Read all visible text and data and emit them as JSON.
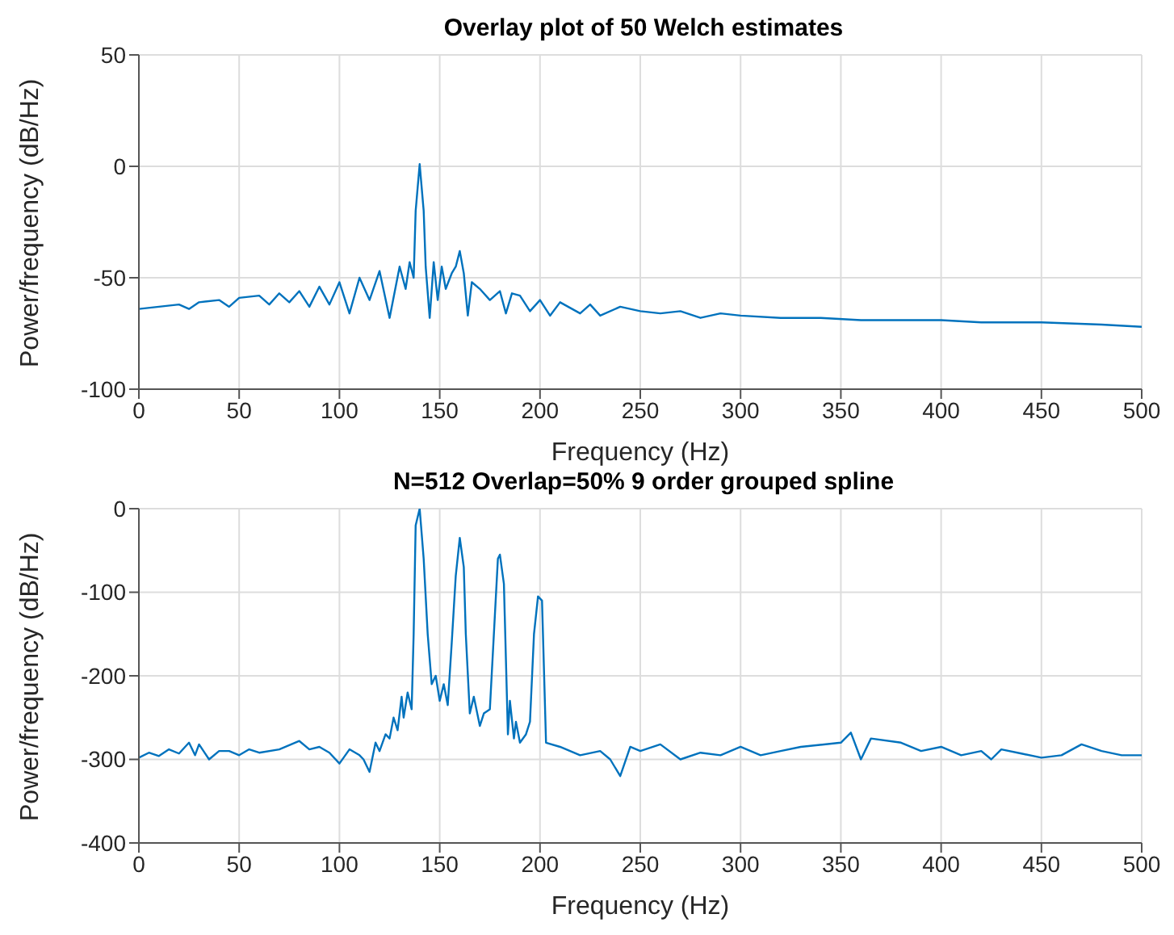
{
  "chart_data": [
    {
      "type": "line",
      "title": "Overlay plot of 50 Welch estimates",
      "xlabel": "Frequency (Hz)",
      "ylabel": "Power/frequency (dB/Hz)",
      "xlim": [
        0,
        500
      ],
      "xticks": [
        0,
        50,
        100,
        150,
        200,
        250,
        300,
        350,
        400,
        450,
        500
      ],
      "ylim": [
        -100,
        50
      ],
      "yticks": [
        -100,
        -50,
        0,
        50
      ],
      "grid": true,
      "marker": "none",
      "line_style": "solid",
      "series": [
        {
          "color": "#0072bd",
          "x": [
            0,
            10,
            20,
            25,
            30,
            40,
            45,
            50,
            60,
            65,
            70,
            75,
            80,
            85,
            90,
            95,
            100,
            105,
            110,
            115,
            120,
            125,
            130,
            133,
            135,
            137,
            138,
            140,
            142,
            143,
            145,
            147,
            149,
            151,
            153,
            156,
            158,
            160,
            162,
            164,
            166,
            170,
            175,
            180,
            183,
            186,
            190,
            195,
            200,
            205,
            210,
            220,
            225,
            230,
            240,
            250,
            260,
            270,
            280,
            290,
            300,
            320,
            340,
            360,
            380,
            400,
            420,
            450,
            480,
            500
          ],
          "values": [
            -64,
            -63,
            -62,
            -64,
            -61,
            -60,
            -63,
            -59,
            -58,
            -62,
            -57,
            -61,
            -56,
            -63,
            -54,
            -62,
            -52,
            -66,
            -50,
            -60,
            -47,
            -68,
            -45,
            -55,
            -43,
            -50,
            -20,
            1,
            -20,
            -45,
            -68,
            -43,
            -60,
            -45,
            -55,
            -48,
            -45,
            -38,
            -48,
            -67,
            -52,
            -55,
            -60,
            -56,
            -66,
            -57,
            -58,
            -65,
            -60,
            -67,
            -61,
            -66,
            -62,
            -67,
            -63,
            -65,
            -66,
            -65,
            -68,
            -66,
            -67,
            -68,
            -68,
            -69,
            -69,
            -69,
            -70,
            -70,
            -71,
            -72
          ]
        }
      ]
    },
    {
      "type": "line",
      "title": "N=512 Overlap=50% 9 order grouped spline",
      "xlabel": "Frequency (Hz)",
      "ylabel": "Power/frequency (dB/Hz)",
      "xlim": [
        0,
        500
      ],
      "xticks": [
        0,
        50,
        100,
        150,
        200,
        250,
        300,
        350,
        400,
        450,
        500
      ],
      "ylim": [
        -400,
        0
      ],
      "yticks": [
        -400,
        -300,
        -200,
        -100,
        0
      ],
      "grid": true,
      "marker": "none",
      "line_style": "solid",
      "series": [
        {
          "color": "#0072bd",
          "x": [
            0,
            5,
            10,
            15,
            20,
            25,
            28,
            30,
            35,
            40,
            45,
            50,
            55,
            60,
            70,
            80,
            85,
            90,
            95,
            100,
            105,
            110,
            112,
            115,
            118,
            120,
            123,
            125,
            127,
            129,
            131,
            132,
            134,
            136,
            137,
            138,
            140,
            142,
            144,
            146,
            148,
            150,
            152,
            154,
            156,
            158,
            160,
            162,
            163,
            165,
            167,
            170,
            172,
            175,
            177,
            179,
            180,
            182,
            184,
            185,
            187,
            188,
            190,
            193,
            195,
            197,
            199,
            201,
            203,
            210,
            220,
            230,
            235,
            240,
            245,
            250,
            260,
            270,
            280,
            290,
            300,
            310,
            320,
            330,
            350,
            355,
            360,
            365,
            380,
            390,
            400,
            410,
            420,
            425,
            430,
            440,
            450,
            460,
            470,
            480,
            490,
            500
          ],
          "values": [
            -298,
            -292,
            -296,
            -288,
            -293,
            -280,
            -295,
            -282,
            -300,
            -290,
            -290,
            -295,
            -288,
            -292,
            -288,
            -278,
            -288,
            -285,
            -292,
            -305,
            -288,
            -295,
            -300,
            -315,
            -280,
            -290,
            -270,
            -275,
            -250,
            -265,
            -225,
            -250,
            -220,
            -240,
            -150,
            -20,
            0,
            -60,
            -150,
            -210,
            -200,
            -230,
            -210,
            -235,
            -160,
            -80,
            -35,
            -70,
            -150,
            -245,
            -225,
            -260,
            -245,
            -240,
            -150,
            -60,
            -55,
            -90,
            -270,
            -230,
            -275,
            -255,
            -280,
            -270,
            -255,
            -150,
            -105,
            -110,
            -280,
            -285,
            -295,
            -290,
            -300,
            -320,
            -285,
            -290,
            -282,
            -300,
            -292,
            -295,
            -285,
            -295,
            -290,
            -285,
            -280,
            -268,
            -300,
            -275,
            -280,
            -290,
            -285,
            -295,
            -290,
            -300,
            -288,
            -293,
            -298,
            -295,
            -282,
            -290,
            -295,
            -295
          ]
        }
      ]
    }
  ]
}
